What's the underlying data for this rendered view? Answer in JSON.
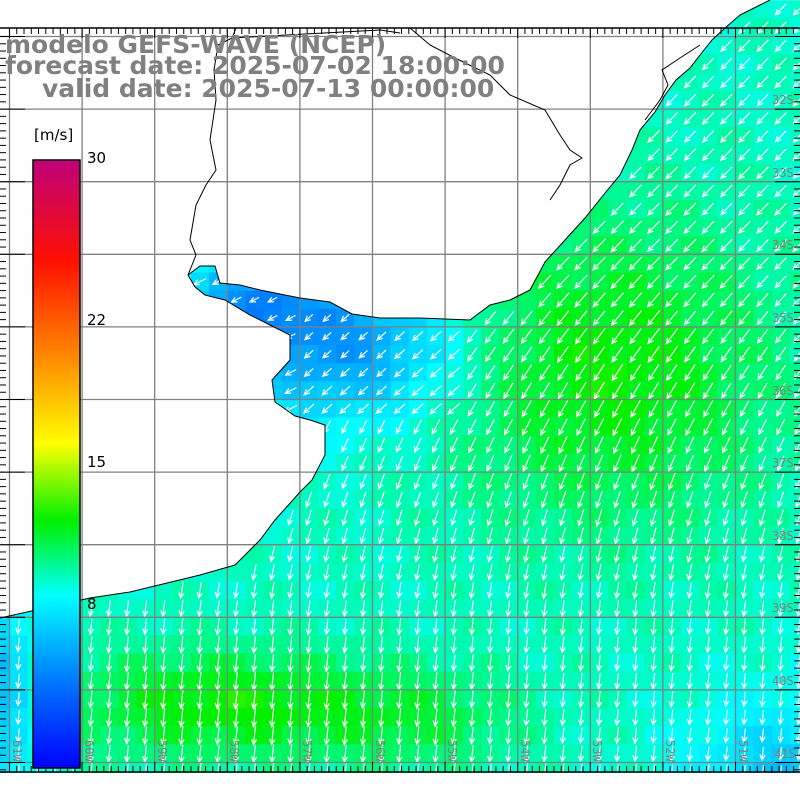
{
  "title": {
    "model": "modelo GEFS-WAVE (NCEP)",
    "forecast": "forecast date: 2025-07-02 18:00:00",
    "valid": "valid date: 2025-07-13 00:00:00"
  },
  "colorbar": {
    "unit": "[m/s]",
    "range": [
      0,
      30
    ],
    "labels": [
      {
        "text": "30",
        "value": 30
      },
      {
        "text": "22",
        "value": 22
      },
      {
        "text": "15",
        "value": 15
      },
      {
        "text": "8",
        "value": 8
      }
    ],
    "stops": [
      {
        "value": 0,
        "color": "#0000ff"
      },
      {
        "value": 4,
        "color": "#0070ff"
      },
      {
        "value": 8.5,
        "color": "#00ffff"
      },
      {
        "value": 12.2,
        "color": "#00f000"
      },
      {
        "value": 16,
        "color": "#ffff00"
      },
      {
        "value": 20,
        "color": "#ff9000"
      },
      {
        "value": 25,
        "color": "#ff1000"
      },
      {
        "value": 30,
        "color": "#c0007a"
      }
    ]
  },
  "axes": {
    "lon_labels": [
      "61W",
      "60W",
      "59W",
      "58W",
      "57W",
      "56W",
      "55W",
      "54W",
      "53W",
      "52W",
      "51W"
    ],
    "lat_labels": [
      "32S",
      "33S",
      "34S",
      "35S",
      "36S",
      "37S",
      "38S",
      "39S",
      "40S",
      "41S"
    ]
  },
  "field": {
    "variable": "wind speed",
    "arrow_color": "#ffffff",
    "grid_color": "#808080",
    "coast_color": "#000000"
  }
}
